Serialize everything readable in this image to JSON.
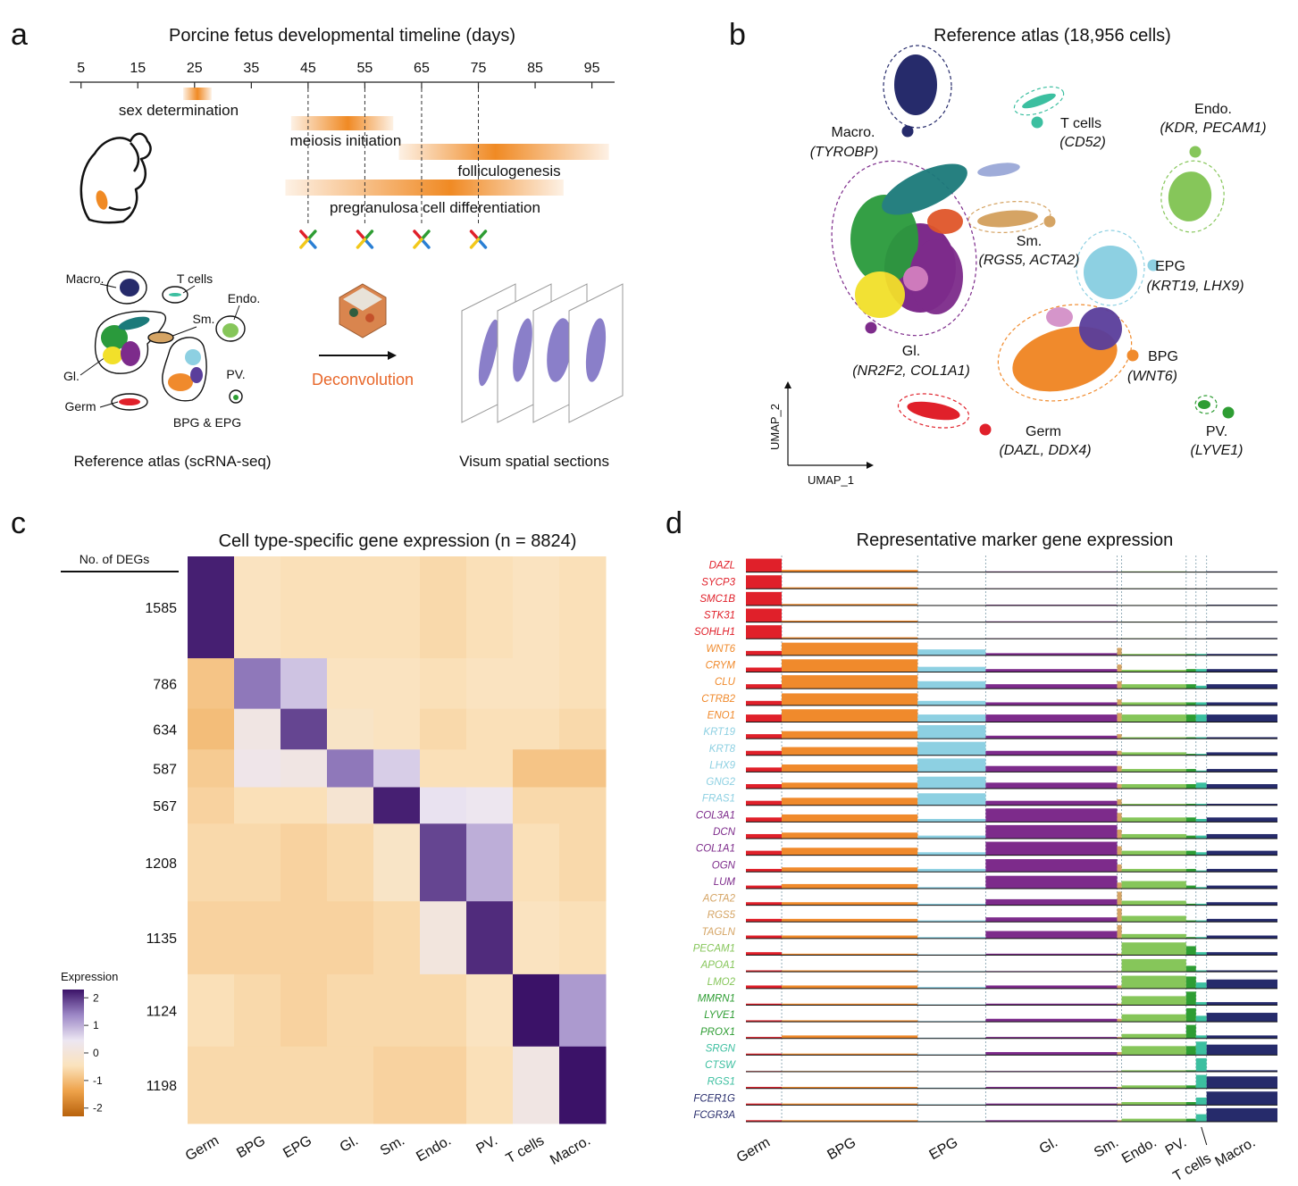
{
  "panel_labels": [
    "a",
    "b",
    "c",
    "d"
  ],
  "timeline": {
    "title": "Porcine fetus developmental timeline (days)",
    "xlim": [
      3,
      99
    ],
    "xticks": [
      5,
      15,
      25,
      35,
      45,
      55,
      65,
      75,
      85,
      95
    ],
    "sampled_days": [
      45,
      55,
      65,
      75
    ],
    "bar_color": "#f08a24",
    "events": [
      {
        "label": "sex determination",
        "start": 23,
        "end": 28,
        "peak": 25.5
      },
      {
        "label": "meiosis initiation",
        "start": 42,
        "end": 60,
        "peak": 52
      },
      {
        "label": "folliculogenesis",
        "start": 61,
        "end": 98,
        "peak": 78
      },
      {
        "label": "pregranulosa cell differentiation",
        "start": 41,
        "end": 90,
        "peak": 70
      }
    ]
  },
  "workflow": {
    "atlas_labels": [
      "Macro.",
      "T cells",
      "Endo.",
      "Sm.",
      "Gl.",
      "PV.",
      "Germ",
      "BPG & EPG"
    ],
    "atlas_caption": "Reference atlas (scRNA-seq)",
    "method": "Deconvolution",
    "sections_caption": "Visum spatial sections"
  },
  "umap": {
    "title": "Reference atlas (18,956 cells)",
    "x_label": "UMAP_1",
    "y_label": "UMAP_2",
    "clusters": [
      {
        "name": "Macro.",
        "markers": "(TYROBP)",
        "color": "#262b6b"
      },
      {
        "name": "T cells",
        "markers": "(CD52)",
        "color": "#3cbfa0"
      },
      {
        "name": "Endo.",
        "markers": "(KDR, PECAM1)",
        "color": "#86c65a"
      },
      {
        "name": "Sm.",
        "markers": "(RGS5, ACTA2)",
        "color": "#d5a464"
      },
      {
        "name": "EPG",
        "markers": "(KRT19, LHX9)",
        "color": "#8dd0e2"
      },
      {
        "name": "Gl.",
        "markers": "(NR2F2, COL1A1)",
        "color": "#7d2b8b"
      },
      {
        "name": "BPG",
        "markers": "(WNT6)",
        "color": "#f08a2c"
      },
      {
        "name": "Germ",
        "markers": "(DAZL, DDX4)",
        "color": "#e0202a"
      },
      {
        "name": "PV.",
        "markers": "(LYVE1)",
        "color": "#2e9d33"
      }
    ]
  },
  "heatmap": {
    "title": "Cell type-specific gene expression (n = 8824)",
    "deg_header": "No. of DEGs",
    "columns": [
      "Germ",
      "BPG",
      "EPG",
      "Gl.",
      "Sm.",
      "Endo.",
      "PV.",
      "T cells",
      "Macro."
    ],
    "deg_counts": [
      1585,
      786,
      634,
      587,
      567,
      1208,
      1135,
      1124,
      1198
    ],
    "values": [
      [
        2.2,
        -0.4,
        -0.5,
        -0.5,
        -0.5,
        -0.6,
        -0.5,
        -0.4,
        -0.5
      ],
      [
        -0.9,
        1.5,
        0.8,
        -0.4,
        -0.4,
        -0.5,
        -0.4,
        -0.4,
        -0.5
      ],
      [
        -1.0,
        0.2,
        1.9,
        -0.3,
        -0.4,
        -0.6,
        -0.5,
        -0.5,
        -0.6
      ],
      [
        -0.8,
        0.3,
        0.2,
        1.5,
        0.7,
        -0.5,
        -0.5,
        -0.9,
        -0.9
      ],
      [
        -0.7,
        -0.5,
        -0.5,
        -0.1,
        2.2,
        0.5,
        0.4,
        -0.6,
        -0.6
      ],
      [
        -0.6,
        -0.6,
        -0.7,
        -0.6,
        -0.3,
        1.9,
        1.0,
        -0.5,
        -0.6
      ],
      [
        -0.7,
        -0.7,
        -0.7,
        -0.7,
        -0.6,
        0.1,
        2.1,
        -0.4,
        -0.5
      ],
      [
        -0.5,
        -0.6,
        -0.7,
        -0.6,
        -0.6,
        -0.6,
        -0.4,
        2.3,
        1.2
      ],
      [
        -0.6,
        -0.6,
        -0.6,
        -0.6,
        -0.7,
        -0.7,
        -0.5,
        0.2,
        2.3
      ]
    ],
    "colorbar_title": "Expression",
    "clim": [
      -2.3,
      2.3
    ],
    "colorbar_ticks": [
      2,
      1,
      0,
      -1,
      -2
    ],
    "colorscale": [
      "#b8620c",
      "#eea24a",
      "#fbe3bd",
      "#ece6f2",
      "#9c87c6",
      "#3b1268"
    ]
  },
  "tracks": {
    "title": "Representative marker gene expression",
    "clusters": [
      "Germ",
      "BPG",
      "EPG",
      "Gl.",
      "Sm.",
      "Endo.",
      "PV.",
      "T cells",
      "Macro."
    ],
    "colors": [
      "#e0202a",
      "#f08a2c",
      "#8dd0e2",
      "#7d2b8b",
      "#d5a464",
      "#86c65a",
      "#2e9d33",
      "#3cbfa0",
      "#262b6b"
    ],
    "cell_counts": [
      1275,
      4850,
      2425,
      4690,
      160,
      2300,
      350,
      380,
      2526
    ],
    "genes": [
      {
        "name": "DAZL",
        "color": "#e0202a",
        "values": [
          0.9,
          0.15,
          0.02,
          0.05,
          0.02,
          0.05,
          0.02,
          0.02,
          0.05
        ]
      },
      {
        "name": "SYCP3",
        "color": "#e0202a",
        "values": [
          0.9,
          0.1,
          0.02,
          0.03,
          0,
          0.03,
          0,
          0.02,
          0.03
        ]
      },
      {
        "name": "SMC1B",
        "color": "#e0202a",
        "values": [
          0.9,
          0.1,
          0.02,
          0.05,
          0,
          0.03,
          0,
          0,
          0.05
        ]
      },
      {
        "name": "STK31",
        "color": "#e0202a",
        "values": [
          0.9,
          0.1,
          0.02,
          0.05,
          0,
          0.03,
          0,
          0,
          0.05
        ]
      },
      {
        "name": "SOHLH1",
        "color": "#e0202a",
        "values": [
          0.9,
          0.1,
          0.02,
          0.03,
          0,
          0.03,
          0,
          0,
          0.05
        ]
      },
      {
        "name": "WNT6",
        "color": "#f08a2c",
        "values": [
          0.3,
          0.85,
          0.4,
          0.15,
          0.5,
          0.1,
          0.1,
          0.1,
          0.1
        ]
      },
      {
        "name": "CRYM",
        "color": "#f08a2c",
        "values": [
          0.3,
          0.85,
          0.35,
          0.2,
          0.5,
          0.15,
          0.2,
          0.2,
          0.2
        ]
      },
      {
        "name": "CLU",
        "color": "#f08a2c",
        "values": [
          0.3,
          0.9,
          0.5,
          0.3,
          0.5,
          0.3,
          0.3,
          0.2,
          0.3
        ]
      },
      {
        "name": "CTRB2",
        "color": "#f08a2c",
        "values": [
          0.3,
          0.8,
          0.3,
          0.2,
          0.4,
          0.2,
          0.2,
          0.2,
          0.2
        ]
      },
      {
        "name": "ENO1",
        "color": "#f08a2c",
        "values": [
          0.5,
          0.85,
          0.5,
          0.5,
          0.6,
          0.5,
          0.5,
          0.5,
          0.5
        ]
      },
      {
        "name": "KRT19",
        "color": "#8dd0e2",
        "values": [
          0.3,
          0.5,
          0.9,
          0.2,
          0.3,
          0.1,
          0.1,
          0.1,
          0.1
        ]
      },
      {
        "name": "KRT8",
        "color": "#8dd0e2",
        "values": [
          0.3,
          0.55,
          0.9,
          0.3,
          0.3,
          0.2,
          0.1,
          0.1,
          0.2
        ]
      },
      {
        "name": "LHX9",
        "color": "#8dd0e2",
        "values": [
          0.3,
          0.5,
          0.9,
          0.4,
          0.4,
          0.2,
          0.2,
          0.1,
          0.2
        ]
      },
      {
        "name": "GNG2",
        "color": "#8dd0e2",
        "values": [
          0.3,
          0.4,
          0.8,
          0.4,
          0.3,
          0.3,
          0.3,
          0.4,
          0.3
        ]
      },
      {
        "name": "FRAS1",
        "color": "#8dd0e2",
        "values": [
          0.3,
          0.5,
          0.8,
          0.3,
          0.4,
          0.1,
          0.1,
          0.1,
          0.1
        ]
      },
      {
        "name": "COL3A1",
        "color": "#7d2b8b",
        "values": [
          0.3,
          0.5,
          0.2,
          0.9,
          0.6,
          0.3,
          0.3,
          0.2,
          0.3
        ]
      },
      {
        "name": "DCN",
        "color": "#7d2b8b",
        "values": [
          0.3,
          0.4,
          0.2,
          0.9,
          0.6,
          0.3,
          0.2,
          0.2,
          0.3
        ]
      },
      {
        "name": "COL1A1",
        "color": "#7d2b8b",
        "values": [
          0.3,
          0.5,
          0.2,
          0.9,
          0.6,
          0.3,
          0.3,
          0.2,
          0.3
        ]
      },
      {
        "name": "OGN",
        "color": "#7d2b8b",
        "values": [
          0.2,
          0.3,
          0.2,
          0.85,
          0.5,
          0.2,
          0.2,
          0.1,
          0.2
        ]
      },
      {
        "name": "LUM",
        "color": "#7d2b8b",
        "values": [
          0.2,
          0.3,
          0.1,
          0.85,
          0.4,
          0.5,
          0.2,
          0.1,
          0.2
        ]
      },
      {
        "name": "ACTA2",
        "color": "#d5a464",
        "values": [
          0.2,
          0.2,
          0.1,
          0.4,
          0.9,
          0.3,
          0.1,
          0.1,
          0.2
        ]
      },
      {
        "name": "RGS5",
        "color": "#d5a464",
        "values": [
          0.2,
          0.2,
          0.1,
          0.3,
          0.9,
          0.4,
          0.1,
          0.1,
          0.2
        ]
      },
      {
        "name": "TAGLN",
        "color": "#d5a464",
        "values": [
          0.2,
          0.2,
          0.1,
          0.5,
          0.9,
          0.3,
          0.1,
          0.1,
          0.2
        ]
      },
      {
        "name": "PECAM1",
        "color": "#86c65a",
        "values": [
          0.2,
          0.1,
          0.05,
          0.1,
          0.1,
          0.85,
          0.6,
          0.2,
          0.2
        ]
      },
      {
        "name": "APOA1",
        "color": "#86c65a",
        "values": [
          0.1,
          0.1,
          0.05,
          0.05,
          0.05,
          0.85,
          0.4,
          0.1,
          0.1
        ]
      },
      {
        "name": "LMO2",
        "color": "#86c65a",
        "values": [
          0.2,
          0.2,
          0.1,
          0.2,
          0.2,
          0.85,
          0.8,
          0.4,
          0.6
        ]
      },
      {
        "name": "MMRN1",
        "color": "#2e9d33",
        "values": [
          0.1,
          0.1,
          0.05,
          0.1,
          0.1,
          0.6,
          0.9,
          0.2,
          0.2
        ]
      },
      {
        "name": "LYVE1",
        "color": "#2e9d33",
        "values": [
          0.1,
          0.1,
          0.05,
          0.2,
          0.2,
          0.5,
          0.9,
          0.4,
          0.6
        ]
      },
      {
        "name": "PROX1",
        "color": "#2e9d33",
        "values": [
          0.1,
          0.2,
          0.05,
          0.1,
          0.1,
          0.3,
          0.9,
          0.2,
          0.2
        ]
      },
      {
        "name": "SRGN",
        "color": "#3cbfa0",
        "values": [
          0.1,
          0.1,
          0.05,
          0.2,
          0.2,
          0.6,
          0.6,
          0.9,
          0.7
        ]
      },
      {
        "name": "CTSW",
        "color": "#3cbfa0",
        "values": [
          0.05,
          0.05,
          0.02,
          0.05,
          0.05,
          0.1,
          0.1,
          0.9,
          0.1
        ]
      },
      {
        "name": "RGS1",
        "color": "#3cbfa0",
        "values": [
          0.1,
          0.1,
          0.05,
          0.1,
          0.1,
          0.2,
          0.2,
          0.9,
          0.8
        ]
      },
      {
        "name": "FCER1G",
        "color": "#262b6b",
        "values": [
          0.1,
          0.1,
          0.05,
          0.1,
          0.1,
          0.2,
          0.2,
          0.5,
          0.9
        ]
      },
      {
        "name": "FCGR3A",
        "color": "#262b6b",
        "values": [
          0.1,
          0.1,
          0.05,
          0.1,
          0.1,
          0.2,
          0.2,
          0.5,
          0.9
        ]
      }
    ]
  }
}
